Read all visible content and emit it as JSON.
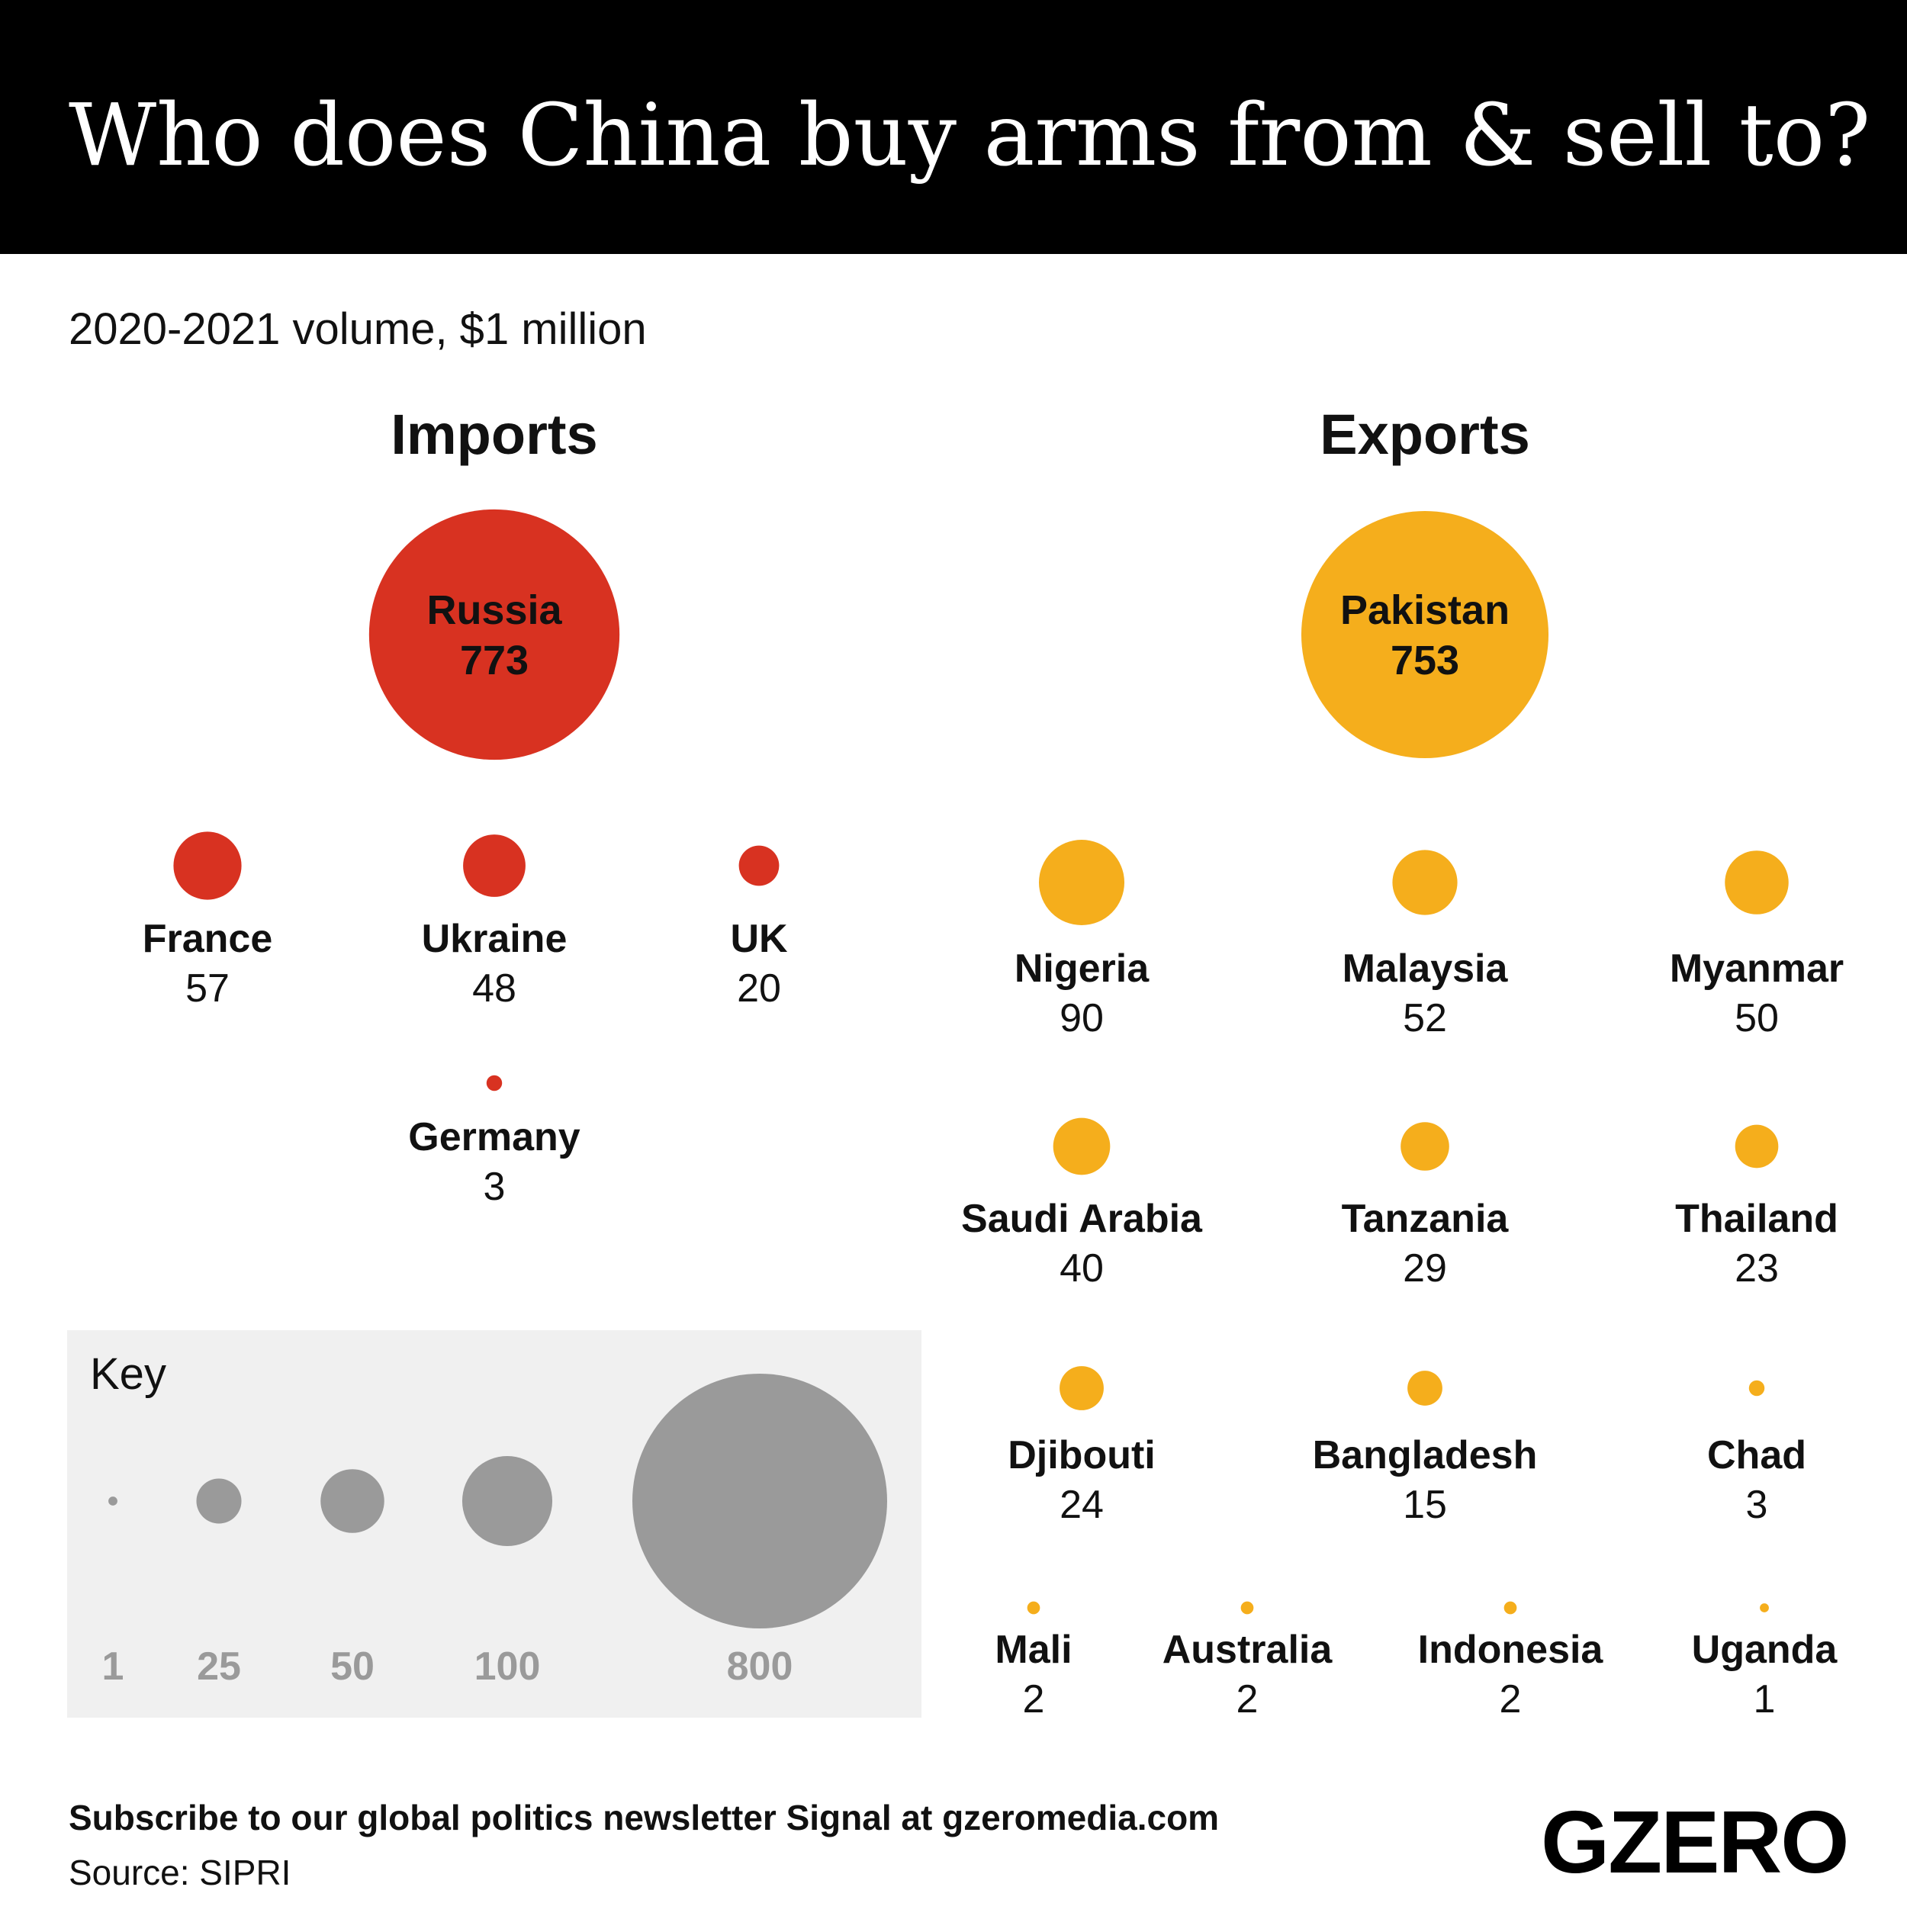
{
  "header": {
    "title": "Who does China buy arms from & sell to?"
  },
  "subtitle": "2020-2021 volume, $1 million",
  "colors": {
    "imports": "#d83221",
    "exports": "#f5ae1c",
    "key": "#9a9a9a",
    "key_background": "#f0f0f0"
  },
  "chart_data": {
    "type": "bubble",
    "title": "Who does China buy arms from & sell to?",
    "subtitle": "2020-2021 volume, $1 million",
    "imports": {
      "label": "Imports",
      "items": [
        {
          "name": "Russia",
          "value": 773
        },
        {
          "name": "France",
          "value": 57
        },
        {
          "name": "Ukraine",
          "value": 48
        },
        {
          "name": "UK",
          "value": 20
        },
        {
          "name": "Germany",
          "value": 3
        }
      ]
    },
    "exports": {
      "label": "Exports",
      "items": [
        {
          "name": "Pakistan",
          "value": 753
        },
        {
          "name": "Nigeria",
          "value": 90
        },
        {
          "name": "Malaysia",
          "value": 52
        },
        {
          "name": "Myanmar",
          "value": 50
        },
        {
          "name": "Saudi Arabia",
          "value": 40
        },
        {
          "name": "Tanzania",
          "value": 29
        },
        {
          "name": "Thailand",
          "value": 23
        },
        {
          "name": "Djibouti",
          "value": 24
        },
        {
          "name": "Bangladesh",
          "value": 15
        },
        {
          "name": "Chad",
          "value": 3
        },
        {
          "name": "Mali",
          "value": 2
        },
        {
          "name": "Australia",
          "value": 2
        },
        {
          "name": "Indonesia",
          "value": 2
        },
        {
          "name": "Uganda",
          "value": 1
        }
      ]
    },
    "key": {
      "label": "Key",
      "values": [
        1,
        25,
        50,
        100,
        800
      ]
    }
  },
  "footer": {
    "subscribe": "Subscribe to our global politics newsletter Signal at gzeromedia.com",
    "source": "Source: SIPRI",
    "logo": "GZERO"
  }
}
